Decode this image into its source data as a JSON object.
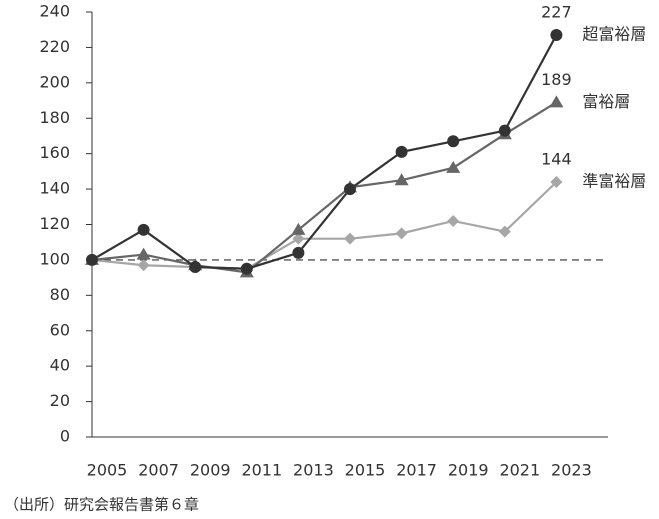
{
  "chart_data": {
    "type": "line",
    "categories": [
      "2005",
      "2007",
      "2009",
      "2011",
      "2013",
      "2015",
      "2017",
      "2019",
      "2021",
      "2023"
    ],
    "series": [
      {
        "name": "超富裕層",
        "color": "#333333",
        "marker": "circle",
        "values": [
          100,
          117,
          96,
          95,
          104,
          140,
          161,
          167,
          173,
          227
        ]
      },
      {
        "name": "富裕層",
        "color": "#666666",
        "marker": "triangle",
        "values": [
          100,
          103,
          97,
          93,
          117,
          141,
          145,
          152,
          171,
          189
        ]
      },
      {
        "name": "準富裕層",
        "color": "#a6a6a6",
        "marker": "diamond",
        "values": [
          100,
          97,
          96,
          95,
          112,
          112,
          115,
          122,
          116,
          144
        ]
      }
    ],
    "ylim": [
      0,
      240
    ],
    "yticks": [
      0,
      20,
      40,
      60,
      80,
      100,
      120,
      140,
      160,
      180,
      200,
      220,
      240
    ],
    "reference_line": 100,
    "source": "（出所）研究会報告書第６章"
  }
}
